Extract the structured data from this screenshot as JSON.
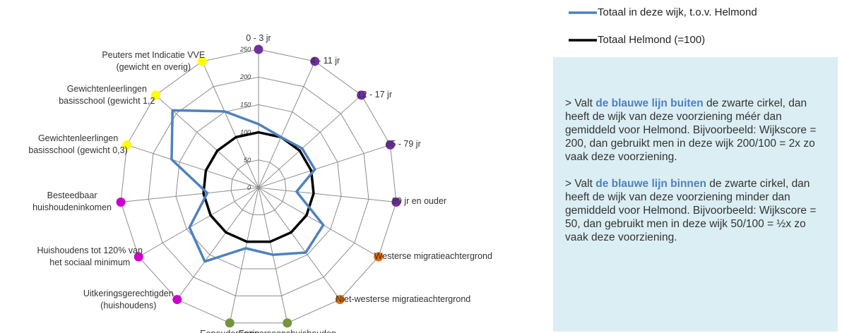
{
  "chart_data": {
    "type": "radar",
    "categories": [
      "0 - 3 jr",
      "4 - 11 jr",
      "12 - 17 jr",
      "65 - 79 jr",
      "80 jr en ouder",
      "Westerse migratieachtergrond",
      "Niet-westerse migratieachtergrond",
      "Eenpersoonshuishouden",
      "Eenoudergezin",
      "Uitkeringsgerechtigden (huishoudens)",
      "Huishoudens tot 120% van het sociaal minimum",
      "Besteedbaar huishoudeninkomen",
      "Gewichtenleerlingen basisschool (gewicht 0,3)",
      "Gewichtenleerlingen basisschool (gewicht 1,2",
      "Peuters met Indicatie VVE (gewicht en overig)"
    ],
    "category_colors": [
      "#7030a0",
      "#7030a0",
      "#7030a0",
      "#7030a0",
      "#7030a0",
      "#e36c09",
      "#e36c09",
      "#77933c",
      "#77933c",
      "#cc00cc",
      "#cc00cc",
      "#cc00cc",
      "#ffff00",
      "#ffff00",
      "#ffff00"
    ],
    "series": [
      {
        "name": "Totaal in deze wijk, t.o.v. Helmond",
        "color": "#4f81bd",
        "values": [
          115,
          100,
          106,
          107,
          69,
          135,
          145,
          124,
          112,
          165,
          144,
          93,
          165,
          209,
          151
        ]
      },
      {
        "name": "Totaal Helmond (=100)",
        "color": "#000000",
        "values": [
          100,
          100,
          100,
          100,
          100,
          100,
          100,
          100,
          100,
          100,
          100,
          100,
          100,
          100,
          100
        ]
      }
    ],
    "ylim": [
      0,
      250
    ],
    "yticks": [
      0,
      50,
      100,
      150,
      200,
      250
    ],
    "grid": true
  },
  "info": {
    "paragraphs": [
      [
        "> Valt ",
        "de blauwe lijn buiten",
        " de zwarte cirkel, dan heeft de wijk van deze voorziening méér dan gemiddeld voor Helmond. Bijvoorbeeld: Wijkscore = 200, dan gebruikt men in deze wijk 200/100 = 2x zo vaak deze voorziening."
      ],
      [
        "> Valt ",
        "de blauwe lijn binnen",
        " de zwarte cirkel, dan heeft de wijk van deze voorziening minder dan gemiddeld voor Helmond. Bijvoorbeeld: Wijkscore = 50, dan gebruikt men in deze wijk 50/100 = ½x zo vaak deze voorziening."
      ]
    ]
  }
}
